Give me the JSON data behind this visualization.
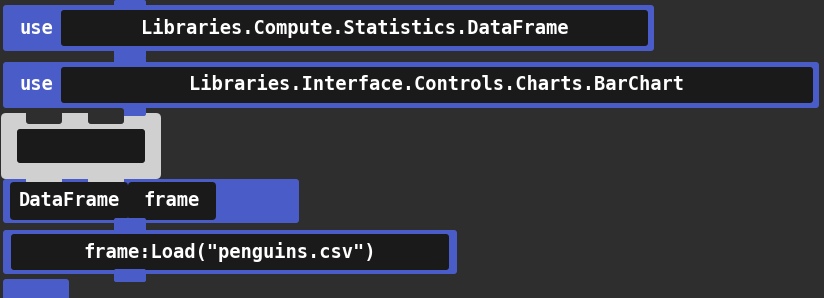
{
  "bg_color": "#2e2e2e",
  "block_blue": "#4a5cc7",
  "block_blue2": "#3a4ab5",
  "text_bg": "#1a1a1a",
  "text_color": "#ffffff",
  "puzzle_gray": "#d0d0d0",
  "puzzle_dark": "#1a1a1a",
  "line1_keyword": "use",
  "line1_text": "Libraries.Compute.Statistics.DataFrame",
  "line2_keyword": "use",
  "line2_text": "Libraries.Interface.Controls.Charts.BarChart",
  "line3_type": "DataFrame",
  "line3_name": "frame",
  "line4_text": "frame:Load(\"penguins.csv\")",
  "font_family": "monospace",
  "font_size": 13.5,
  "fig_w": 8.24,
  "fig_h": 2.98,
  "dpi": 100
}
